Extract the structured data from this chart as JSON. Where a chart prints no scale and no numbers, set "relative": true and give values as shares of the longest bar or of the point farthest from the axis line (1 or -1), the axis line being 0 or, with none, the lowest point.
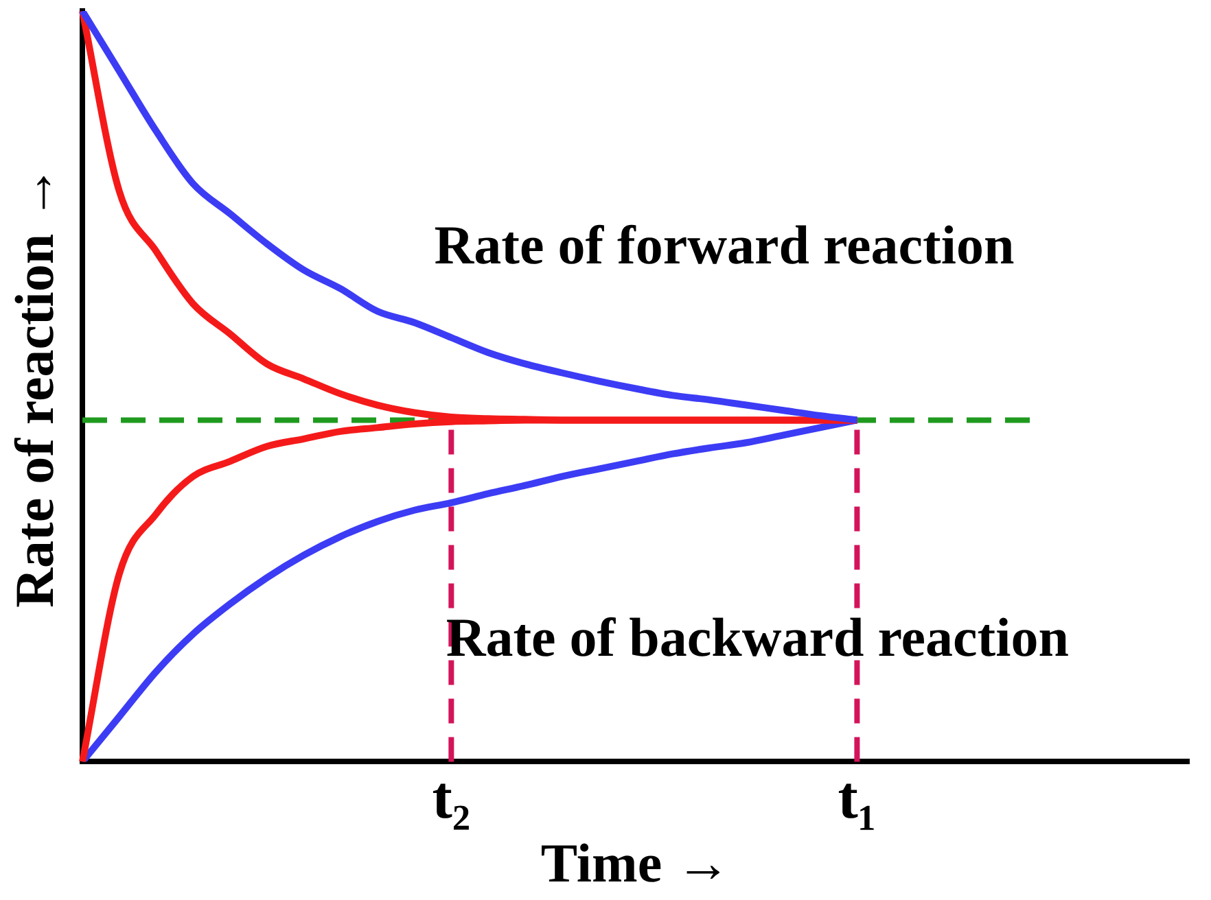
{
  "chart_data": {
    "type": "line",
    "relative": true,
    "xlabel": "Time →",
    "ylabel": "Rate of reaction →",
    "categories": [
      null,
      null,
      null,
      null,
      null,
      null,
      null,
      null,
      null,
      null,
      "t₂",
      null,
      null,
      null,
      null,
      null,
      null,
      null,
      null,
      null,
      null,
      "t₁",
      null,
      null,
      null,
      null,
      null,
      null,
      null,
      null,
      null
    ],
    "grid": false,
    "legend": false,
    "marker": "none",
    "line_style": "solid",
    "annotations": [
      "Rate of forward reaction",
      "Rate of backward reaction"
    ],
    "ref_lines": [
      {
        "axis": "y",
        "value": 0.455,
        "color": "#1f9a1f",
        "line_style": "dashed"
      },
      {
        "axis": "x",
        "value": "t₂",
        "color": "#d4145a",
        "line_style": "dashed"
      },
      {
        "axis": "x",
        "value": "t₁",
        "color": "#d4145a",
        "line_style": "dashed"
      }
    ],
    "series": [
      {
        "color": "#3c3cf5",
        "values": [
          1,
          0.92,
          0.84,
          0.77,
          0.73,
          0.69,
          0.655,
          0.63,
          0.6,
          0.585,
          0.565,
          0.545,
          0.53,
          0.518,
          0.507,
          0.497,
          0.488,
          0.482,
          0.475,
          0.468,
          0.461,
          0.455,
          null,
          null,
          null,
          null,
          null,
          null,
          null,
          null,
          null
        ]
      },
      {
        "color": "#f51a1a",
        "values": [
          1,
          0.76,
          0.68,
          0.61,
          0.57,
          0.53,
          0.51,
          0.49,
          0.475,
          0.465,
          0.459,
          0.457,
          0.456,
          0.455,
          0.455,
          0.455,
          0.455,
          0.455,
          0.455,
          0.455,
          0.455,
          0.455,
          null,
          null,
          null,
          null,
          null,
          null,
          null,
          null,
          null
        ]
      },
      {
        "color": "#f51a1a",
        "values": [
          0,
          0.25,
          0.33,
          0.38,
          0.4,
          0.42,
          0.43,
          0.44,
          0.445,
          0.45,
          0.453,
          0.454,
          0.455,
          0.455,
          0.455,
          0.455,
          0.455,
          0.455,
          0.455,
          0.455,
          0.455,
          0.455,
          null,
          null,
          null,
          null,
          null,
          null,
          null,
          null,
          null
        ]
      },
      {
        "color": "#3c3cf5",
        "values": [
          0,
          0.06,
          0.12,
          0.17,
          0.21,
          0.245,
          0.275,
          0.3,
          0.32,
          0.335,
          0.345,
          0.357,
          0.368,
          0.38,
          0.39,
          0.4,
          0.41,
          0.418,
          0.425,
          0.435,
          0.445,
          0.455,
          null,
          null,
          null,
          null,
          null,
          null,
          null,
          null,
          null
        ]
      }
    ]
  }
}
